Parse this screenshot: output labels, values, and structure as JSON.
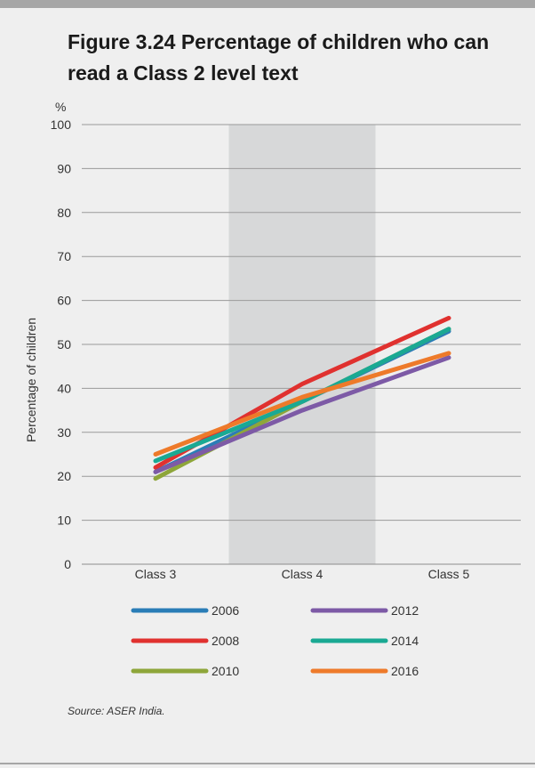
{
  "figure": {
    "title": "Figure 3.24 Percentage of children who can read a Class 2 level text",
    "source": "Source: ASER India."
  },
  "chart_data": {
    "type": "line",
    "title": "Figure 3.24 Percentage of children who can read a Class 2 level text",
    "xlabel": "",
    "ylabel": "Percentage of children",
    "y_unit_label": "%",
    "categories": [
      "Class 3",
      "Class 4",
      "Class 5"
    ],
    "ylim": [
      0,
      100
    ],
    "yticks": [
      0,
      10,
      20,
      30,
      40,
      50,
      60,
      70,
      80,
      90,
      100
    ],
    "grid": true,
    "highlighted_category": "Class 4",
    "legend_position": "bottom",
    "series": [
      {
        "name": "2006",
        "values": [
          21,
          37,
          53
        ],
        "color": "#2a7db7"
      },
      {
        "name": "2008",
        "values": [
          22,
          41,
          56
        ],
        "color": "#e0312f"
      },
      {
        "name": "2010",
        "values": [
          19.5,
          37,
          53.5
        ],
        "color": "#8ea63a"
      },
      {
        "name": "2012",
        "values": [
          21,
          35,
          47
        ],
        "color": "#7d5aa6"
      },
      {
        "name": "2014",
        "values": [
          23.5,
          37,
          53.5
        ],
        "color": "#1aa993"
      },
      {
        "name": "2016",
        "values": [
          25,
          38,
          48
        ],
        "color": "#ee7a2a"
      }
    ]
  }
}
